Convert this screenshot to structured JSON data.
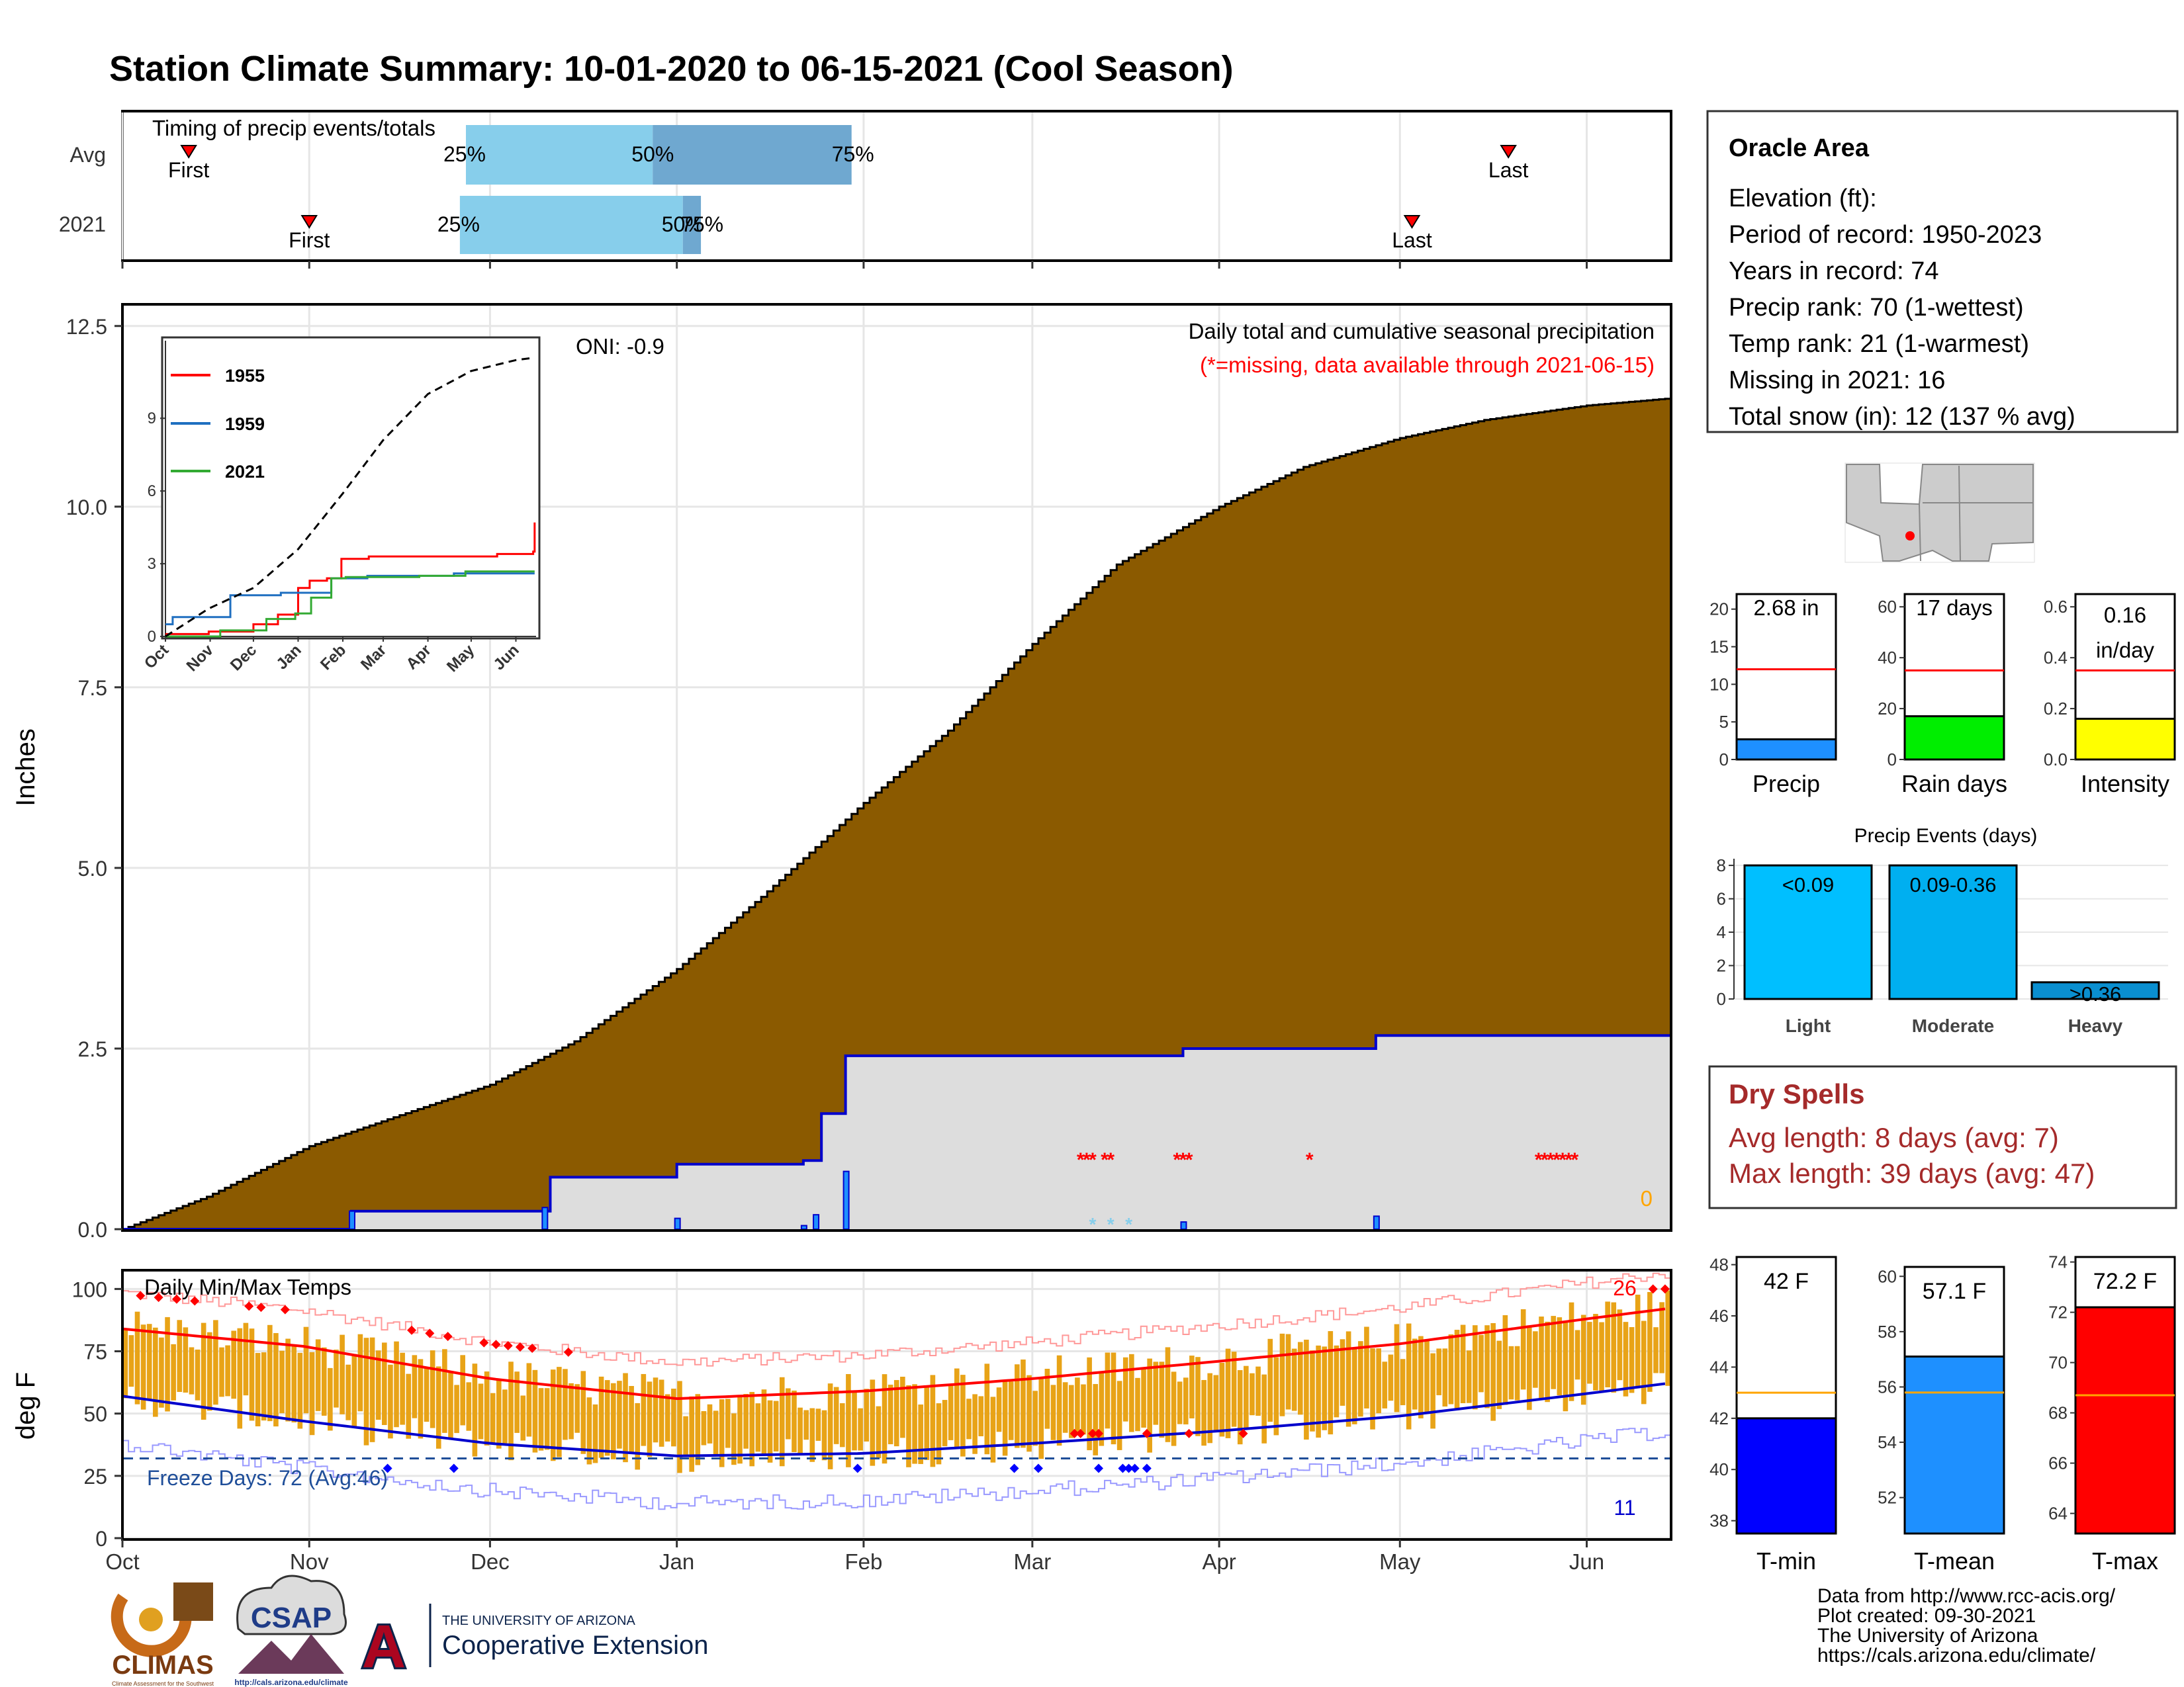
{
  "title": "Station Climate Summary: 10-01-2020 to 06-15-2021 (Cool Season)",
  "colors": {
    "title": "#1f3c88",
    "cumulative_fill": "#8b5a00",
    "season_fill": "#dddddd",
    "season_line": "#0000cc",
    "missing": "#ff0000",
    "tmin_box": "#0000ff",
    "tmean_box": "#1e90ff",
    "tmax_box": "#ff0000",
    "temp_bars": "#e8a317",
    "precip_box": "#1e90ff",
    "raindays_box": "#00ee00",
    "intensity_box": "#ffff00",
    "event_light": "#00bfff",
    "event_moderate": "#00aff0",
    "event_heavy": "#0a8fd0",
    "dryspell_text": "#a52a2a"
  },
  "month_ticks": [
    "Oct",
    "Nov",
    "Dec",
    "Jan",
    "Feb",
    "Mar",
    "Apr",
    "May",
    "Jun"
  ],
  "timing": {
    "title": "Timing of precip events/totals",
    "rows": [
      {
        "label": "Avg",
        "first": "First",
        "last": "Last",
        "p25": "25%",
        "p50": "50%",
        "p75": "75%"
      },
      {
        "label": "2021",
        "first": "First",
        "last": "Last",
        "p25": "25%",
        "p50": "50%",
        "p75": "75%"
      }
    ]
  },
  "info": {
    "station": "Oracle Area",
    "lines": [
      "Elevation (ft):",
      "Period of record: 1950-2023",
      "Years in record: 74",
      "Precip rank: 70 (1-wettest)",
      "Temp rank: 21 (1-warmest)",
      "Missing in 2021: 16",
      "Total snow (in): 12 (137 % avg)"
    ]
  },
  "precip_panel": {
    "ylabel": "Inches",
    "title": "Daily total and cumulative seasonal precipitation",
    "missing_note": "(*=missing, data available through 2021-06-15)",
    "oni": "ONI: -0.9",
    "corner_count": "0",
    "yticks": [
      "0.0",
      "2.5",
      "5.0",
      "7.5",
      "10.0",
      "12.5"
    ]
  },
  "inset": {
    "legend": [
      "1955",
      "1959",
      "2021"
    ],
    "yticks": [
      "0",
      "3",
      "6",
      "9"
    ],
    "xticks": [
      "Oct",
      "Nov",
      "Dec",
      "Jan",
      "Feb",
      "Mar",
      "Apr",
      "May",
      "Jun"
    ]
  },
  "temp_panel": {
    "ylabel": "deg F",
    "title": "Daily Min/Max Temps",
    "freeze": "Freeze Days: 72 (Avg:46)",
    "hot_count": "26",
    "cold_count": "11",
    "yticks": [
      "0",
      "25",
      "50",
      "75",
      "100"
    ]
  },
  "small_bars": [
    {
      "label": "Precip",
      "value_text": "2.68 in",
      "yticks": [
        "0",
        "5",
        "10",
        "15",
        "20"
      ]
    },
    {
      "label": "Rain days",
      "value_text": "17 days",
      "yticks": [
        "0",
        "20",
        "40",
        "60"
      ]
    },
    {
      "label": "Intensity",
      "value_text": "0.16 in/day",
      "yticks": [
        "0.0",
        "0.2",
        "0.4",
        "0.6"
      ]
    }
  ],
  "events": {
    "title": "Precip Events (days)",
    "yticks": [
      "0",
      "2",
      "4",
      "6",
      "8"
    ],
    "categories": [
      "Light",
      "Moderate",
      "Heavy"
    ],
    "range_labels": [
      "<0.09",
      "0.09-0.36",
      ">0.36"
    ]
  },
  "dry_spells": {
    "title": "Dry Spells",
    "avg": "Avg length: 8 days (avg: 7)",
    "max": "Max length: 39 days (avg: 47)"
  },
  "temp_bars": [
    {
      "label": "T-min",
      "value_text": "42 F",
      "yticks": [
        "38",
        "40",
        "42",
        "44",
        "46",
        "48"
      ]
    },
    {
      "label": "T-mean",
      "value_text": "57.1 F",
      "yticks": [
        "52",
        "54",
        "56",
        "58",
        "60"
      ]
    },
    {
      "label": "T-max",
      "value_text": "72.2 F",
      "yticks": [
        "64",
        "66",
        "68",
        "70",
        "72",
        "74"
      ]
    }
  ],
  "logos": {
    "climas": "CLIMAS",
    "climas_sub": "Climate Assessment for the Southwest",
    "csap": "CSAP",
    "csap_url": "http://cals.arizona.edu/climate",
    "ua_small": "THE UNIVERSITY OF ARIZONA",
    "ua_big": "Cooperative Extension"
  },
  "footer": [
    "Data from http://www.rcc-acis.org/",
    "Plot created: 09-30-2021",
    "The University of Arizona",
    "https://cals.arizona.edu/climate/"
  ],
  "chart_data": [
    {
      "type": "bar",
      "name_note": "timing",
      "rows": [
        "Avg",
        "2021"
      ],
      "first_day": [
        11,
        31
      ],
      "last_day": [
        230,
        214
      ],
      "p25_day": [
        57,
        56
      ],
      "p50_day": [
        88,
        93
      ],
      "p75_day": [
        121,
        96
      ]
    },
    {
      "type": "area",
      "xlim": [
        "2020-10-01",
        "2021-06-15"
      ],
      "ylim": [
        0,
        12.5
      ],
      "climatology_cumulative": {
        "x": [
          "2020-10-01",
          "2020-10-15",
          "2020-11-01",
          "2020-11-15",
          "2020-12-01",
          "2020-12-15",
          "2021-01-01",
          "2021-01-15",
          "2021-02-01",
          "2021-02-15",
          "2021-03-01",
          "2021-03-15",
          "2021-04-01",
          "2021-04-15",
          "2021-05-01",
          "2021-05-15",
          "2021-06-01",
          "2021-06-15"
        ],
        "y": [
          0.0,
          0.45,
          1.15,
          1.55,
          2.0,
          2.6,
          3.6,
          4.6,
          5.9,
          6.9,
          8.1,
          9.2,
          10.0,
          10.55,
          10.95,
          11.2,
          11.4,
          11.5
        ]
      },
      "season_2021_cumulative": {
        "x": [
          "2020-10-01",
          "2020-11-08",
          "2020-12-10",
          "2020-12-11",
          "2021-01-01",
          "2021-01-22",
          "2021-01-25",
          "2021-01-29",
          "2021-03-26",
          "2021-04-27",
          "2021-06-15"
        ],
        "y": [
          0.0,
          0.25,
          0.25,
          0.72,
          0.9,
          0.95,
          1.6,
          2.4,
          2.5,
          2.68,
          2.68
        ]
      },
      "daily_precip": {
        "x": [
          "2020-11-08",
          "2020-12-10",
          "2021-01-01",
          "2021-01-22",
          "2021-01-24",
          "2021-01-29",
          "2021-03-26",
          "2021-04-27"
        ],
        "y": [
          0.25,
          0.3,
          0.15,
          0.05,
          0.2,
          0.8,
          0.1,
          0.18
        ]
      },
      "missing_days": [
        "2021-03-09",
        "2021-03-10",
        "2021-03-11",
        "2021-03-13",
        "2021-03-14",
        "2021-03-25",
        "2021-03-26",
        "2021-03-27",
        "2021-04-16",
        "2021-05-24",
        "2021-05-25",
        "2021-05-26",
        "2021-05-27",
        "2021-05-28",
        "2021-05-29",
        "2021-05-30"
      ]
    },
    {
      "type": "line",
      "name_note": "inset cumulative by year",
      "xticks": [
        "Oct",
        "Nov",
        "Dec",
        "Jan",
        "Feb",
        "Mar",
        "Apr",
        "May",
        "Jun"
      ],
      "ylim": [
        0,
        12
      ],
      "series": [
        {
          "name": "1955",
          "x": [
            0,
            30,
            61,
            78,
            92,
            100,
            112,
            122,
            141,
            230,
            255,
            256
          ],
          "y": [
            0.1,
            0.2,
            0.5,
            0.9,
            2.0,
            2.3,
            2.4,
            3.2,
            3.3,
            3.4,
            3.5,
            4.7
          ]
        },
        {
          "name": "1959",
          "x": [
            0,
            5,
            15,
            45,
            80,
            115,
            140,
            200,
            256
          ],
          "y": [
            0.5,
            0.8,
            0.8,
            1.7,
            1.8,
            2.4,
            2.5,
            2.6,
            2.6
          ]
        },
        {
          "name": "2021",
          "x": [
            0,
            38,
            70,
            90,
            101,
            115,
            125,
            176,
            208,
            256
          ],
          "y": [
            0.0,
            0.25,
            0.72,
            0.95,
            1.6,
            2.4,
            2.45,
            2.5,
            2.68,
            2.68
          ]
        },
        {
          "name": "",
          "x": [
            0,
            30,
            61,
            92,
            123,
            151,
            182,
            212,
            243,
            256
          ],
          "y": [
            0.0,
            1.15,
            2.0,
            3.6,
            5.9,
            8.1,
            10.0,
            10.95,
            11.4,
            11.5
          ]
        }
      ]
    },
    {
      "type": "line",
      "name_note": "daily temperatures",
      "ylim": [
        0,
        105
      ],
      "avg_max": {
        "x": [
          0,
          30,
          61,
          92,
          123,
          151,
          182,
          212,
          243,
          256
        ],
        "y": [
          84,
          77,
          64,
          56,
          59,
          64,
          71,
          78,
          88,
          92
        ]
      },
      "avg_min": {
        "x": [
          0,
          30,
          61,
          92,
          123,
          151,
          182,
          212,
          243,
          256
        ],
        "y": [
          57,
          47,
          38,
          33,
          34,
          38,
          43,
          49,
          58,
          62
        ]
      },
      "freeze_line": 32,
      "freeze_days": 72
    },
    {
      "type": "bar",
      "categories": [
        "Precip",
        "Rain days",
        "Intensity"
      ],
      "values": [
        2.68,
        17,
        0.16
      ],
      "averages": [
        12,
        35,
        0.35
      ],
      "ylims": [
        [
          0,
          22
        ],
        [
          0,
          65
        ],
        [
          0,
          0.65
        ]
      ]
    },
    {
      "type": "bar",
      "categories": [
        "Light",
        "Moderate",
        "Heavy"
      ],
      "values": [
        8,
        8,
        1
      ],
      "ylim": [
        0,
        8.4
      ]
    },
    {
      "type": "bar",
      "categories": [
        "T-min",
        "T-mean",
        "T-max"
      ],
      "values": [
        42,
        57.1,
        72.2
      ],
      "averages": [
        43,
        55.8,
        68.7
      ],
      "ylims": [
        [
          37.5,
          48.3
        ],
        [
          50.7,
          60.7
        ],
        [
          63.2,
          74.2
        ]
      ]
    }
  ]
}
